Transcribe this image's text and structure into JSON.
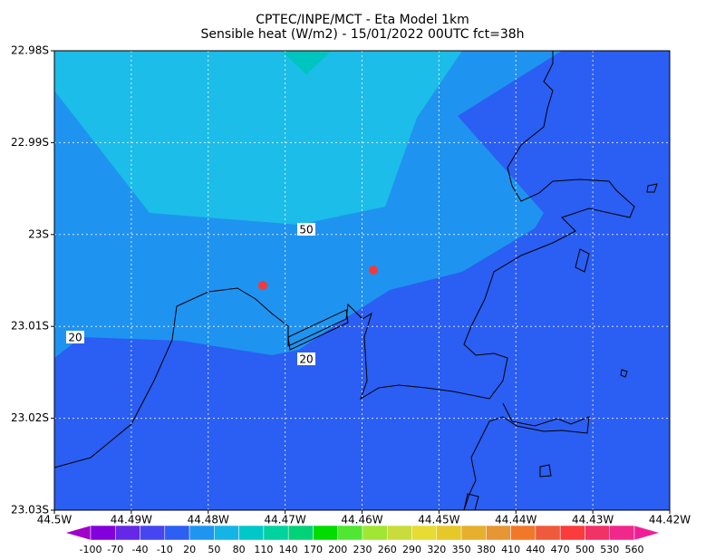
{
  "chart_data": {
    "type": "contour-map",
    "title": "CPTEC/INPE/MCT -  Eta Model 1km",
    "subtitle": "Sensible heat (W/m2) - 15/01/2022 00UTC fct=38h",
    "xlim": [
      -44.5,
      -44.42
    ],
    "xticks": [
      {
        "value": -44.5,
        "label": "44.5W"
      },
      {
        "value": -44.49,
        "label": "44.49W"
      },
      {
        "value": -44.48,
        "label": "44.48W"
      },
      {
        "value": -44.47,
        "label": "44.47W"
      },
      {
        "value": -44.46,
        "label": "44.46W"
      },
      {
        "value": -44.45,
        "label": "44.45W"
      },
      {
        "value": -44.44,
        "label": "44.44W"
      },
      {
        "value": -44.43,
        "label": "44.43W"
      },
      {
        "value": -44.42,
        "label": "44.42W"
      }
    ],
    "ylim": [
      -23.03,
      -22.98
    ],
    "yticks": [
      {
        "value": -22.98,
        "label": "22.98S"
      },
      {
        "value": -22.99,
        "label": "22.99S"
      },
      {
        "value": -23,
        "label": "23S"
      },
      {
        "value": -23.01,
        "label": "23.01S"
      },
      {
        "value": -23.02,
        "label": "23.02S"
      },
      {
        "value": -23.03,
        "label": "23.03S"
      }
    ],
    "grid": true,
    "contour_labels": [
      50,
      20,
      20
    ],
    "colorbar": {
      "levels": [
        -100,
        -70,
        -40,
        -10,
        20,
        50,
        80,
        110,
        140,
        170,
        200,
        230,
        260,
        290,
        320,
        350,
        380,
        410,
        440,
        470,
        500,
        530,
        560
      ],
      "colors": [
        "#a000c8",
        "#8200dc",
        "#6428e6",
        "#4646f0",
        "#2d5ff2",
        "#1e96f0",
        "#14b4e6",
        "#00c8c8",
        "#00d2a0",
        "#00d278",
        "#00dc00",
        "#50e632",
        "#a0e632",
        "#c8dc3c",
        "#e6dc32",
        "#e6c828",
        "#e6af2d",
        "#e69632",
        "#f07828",
        "#f05a3c",
        "#fa3c3c",
        "#f03264",
        "#f0288c",
        "#f01e96"
      ]
    }
  }
}
